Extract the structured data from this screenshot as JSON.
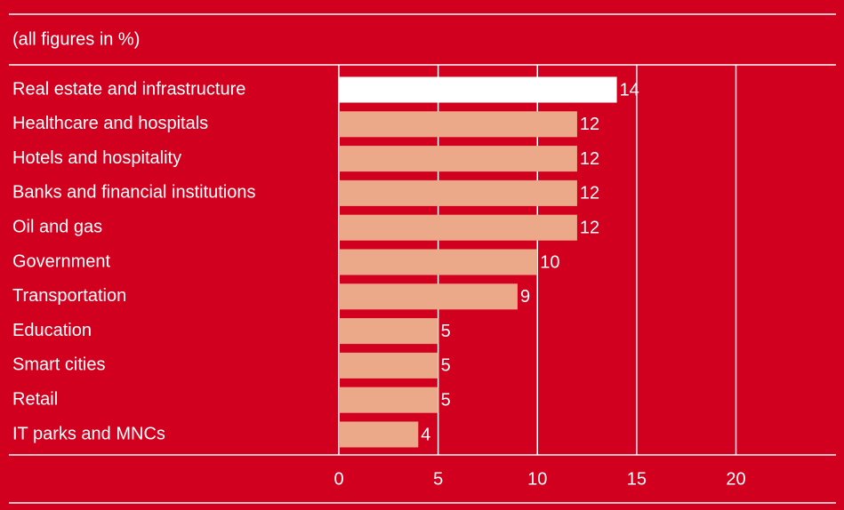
{
  "chart_data": {
    "type": "hbar",
    "title": "(all figures in %)",
    "categories": [
      "Real estate and infrastructure",
      "Healthcare and hospitals",
      "Hotels and hospitality",
      "Banks and financial institutions",
      "Oil and gas",
      "Government",
      "Transportation",
      "Education",
      "Smart cities",
      "Retail",
      "IT parks and MNCs"
    ],
    "values": [
      14,
      12,
      12,
      12,
      12,
      10,
      9,
      5,
      5,
      5,
      4
    ],
    "colors": [
      "#ffffff",
      "#eca98a",
      "#eca98a",
      "#eca98a",
      "#eca98a",
      "#eca98a",
      "#eca98a",
      "#eca98a",
      "#eca98a",
      "#eca98a",
      "#eca98a"
    ],
    "xlim": [
      0,
      24.5
    ],
    "xticks": [
      0,
      5,
      10,
      15,
      20
    ],
    "grid": true
  }
}
